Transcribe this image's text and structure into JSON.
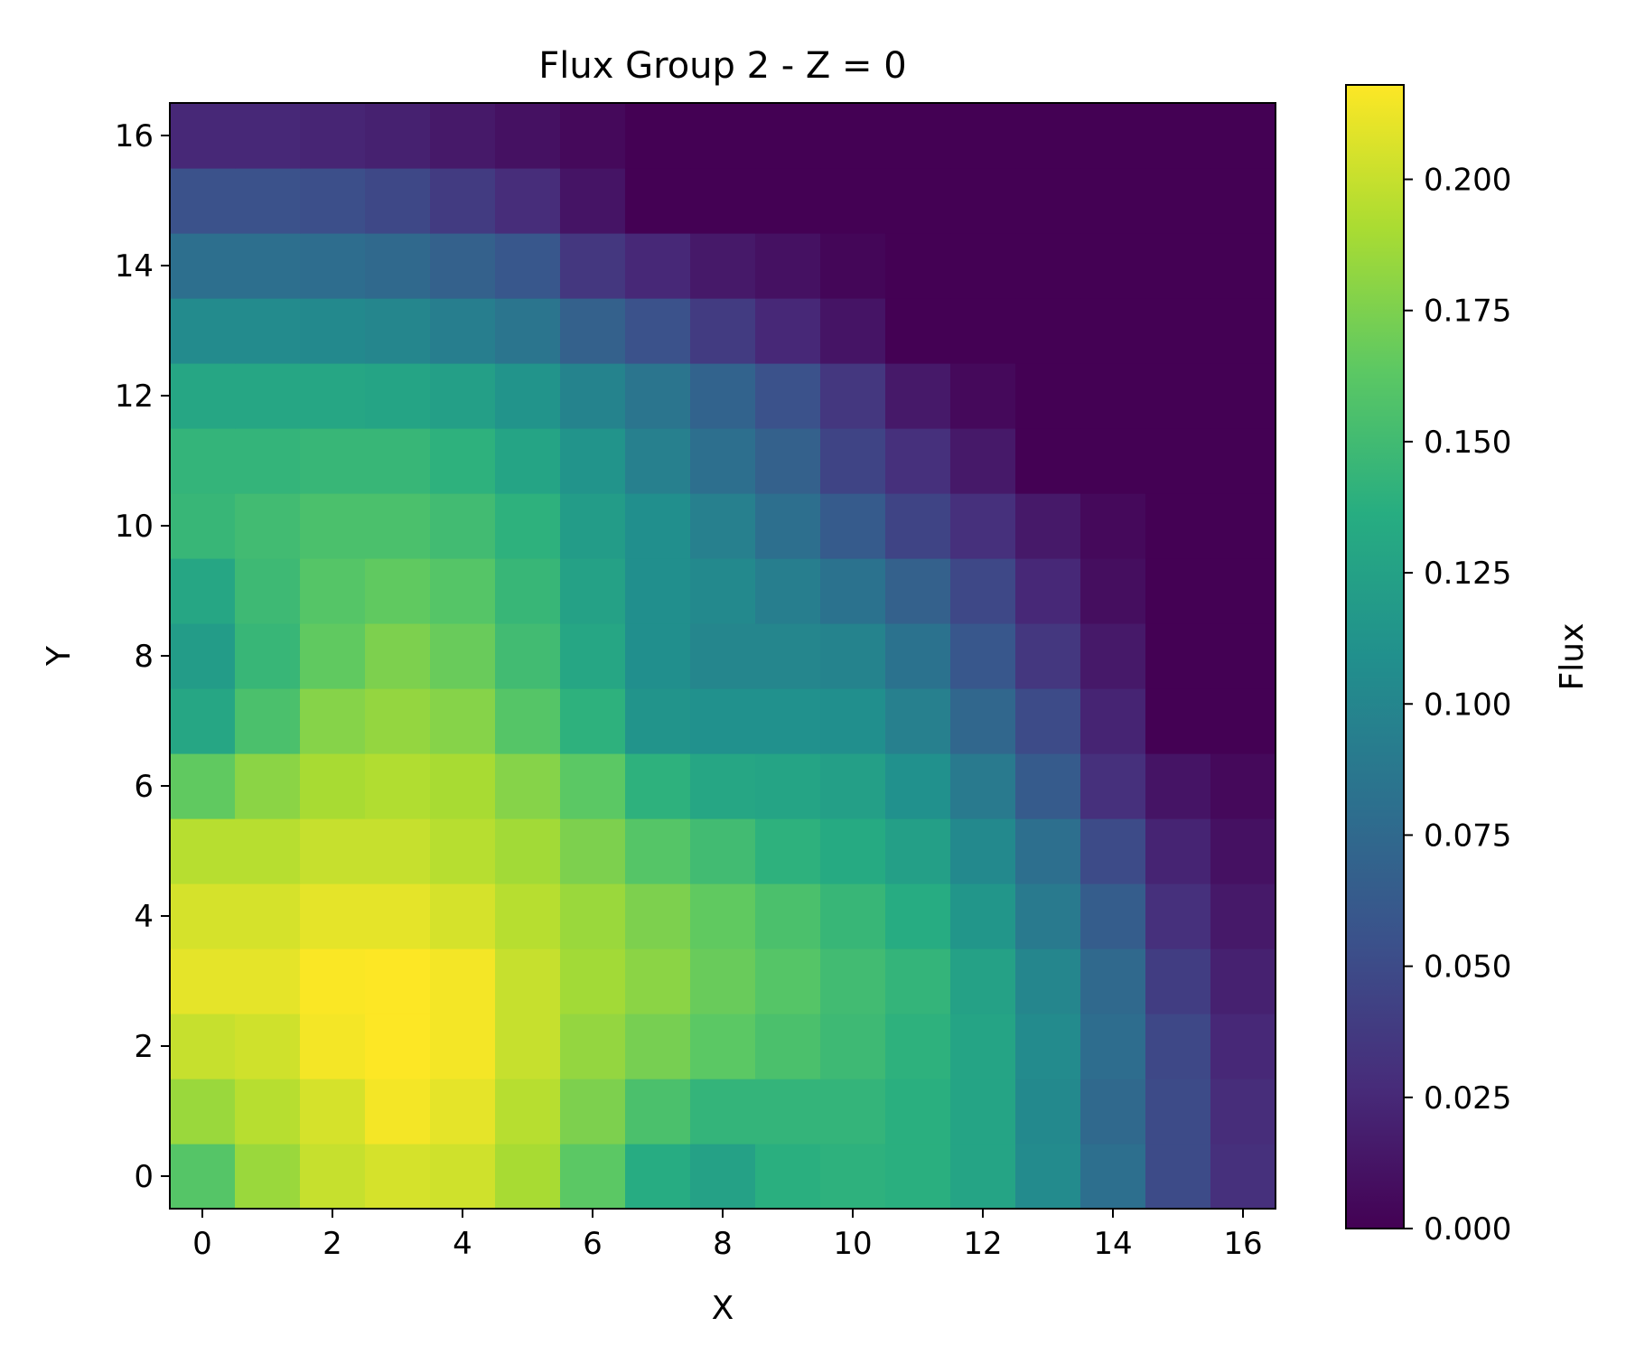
{
  "chart_data": {
    "type": "heatmap",
    "title": "Flux Group 2 - Z = 0",
    "xlabel": "X",
    "ylabel": "Y",
    "xlim": [
      -0.5,
      16.5
    ],
    "ylim": [
      -0.5,
      16.5
    ],
    "xticks": [
      0,
      2,
      4,
      6,
      8,
      10,
      12,
      14,
      16
    ],
    "yticks": [
      0,
      2,
      4,
      6,
      8,
      10,
      12,
      14,
      16
    ],
    "colormap": "viridis",
    "colorbar": {
      "label": "Flux",
      "min": 0.0,
      "max": 0.218,
      "ticks": [
        "0.000",
        "0.025",
        "0.050",
        "0.075",
        "0.100",
        "0.125",
        "0.150",
        "0.175",
        "0.200"
      ]
    },
    "grid_rows_y_ascending": [
      [
        0.16,
        0.185,
        0.2,
        0.205,
        0.203,
        0.19,
        0.163,
        0.135,
        0.125,
        0.138,
        0.14,
        0.138,
        0.128,
        0.105,
        0.08,
        0.05,
        0.03
      ],
      [
        0.185,
        0.195,
        0.205,
        0.215,
        0.21,
        0.195,
        0.175,
        0.155,
        0.143,
        0.143,
        0.143,
        0.138,
        0.128,
        0.103,
        0.075,
        0.05,
        0.028
      ],
      [
        0.2,
        0.203,
        0.215,
        0.218,
        0.215,
        0.2,
        0.183,
        0.173,
        0.163,
        0.155,
        0.148,
        0.14,
        0.128,
        0.105,
        0.078,
        0.048,
        0.025
      ],
      [
        0.21,
        0.21,
        0.217,
        0.218,
        0.215,
        0.2,
        0.188,
        0.18,
        0.168,
        0.16,
        0.15,
        0.143,
        0.125,
        0.1,
        0.075,
        0.04,
        0.02
      ],
      [
        0.205,
        0.205,
        0.21,
        0.21,
        0.205,
        0.195,
        0.185,
        0.175,
        0.165,
        0.155,
        0.145,
        0.135,
        0.115,
        0.09,
        0.065,
        0.03,
        0.015
      ],
      [
        0.195,
        0.195,
        0.2,
        0.2,
        0.195,
        0.188,
        0.175,
        0.16,
        0.15,
        0.14,
        0.133,
        0.123,
        0.103,
        0.08,
        0.05,
        0.022,
        0.01
      ],
      [
        0.165,
        0.18,
        0.19,
        0.193,
        0.19,
        0.178,
        0.163,
        0.14,
        0.13,
        0.128,
        0.123,
        0.11,
        0.09,
        0.063,
        0.03,
        0.012,
        0.005
      ],
      [
        0.13,
        0.155,
        0.178,
        0.183,
        0.178,
        0.16,
        0.14,
        0.113,
        0.11,
        0.11,
        0.108,
        0.095,
        0.073,
        0.05,
        0.022,
        0.0,
        0.0
      ],
      [
        0.12,
        0.145,
        0.165,
        0.175,
        0.168,
        0.15,
        0.13,
        0.108,
        0.1,
        0.1,
        0.098,
        0.083,
        0.06,
        0.035,
        0.015,
        0.0,
        0.0
      ],
      [
        0.13,
        0.148,
        0.16,
        0.165,
        0.16,
        0.145,
        0.125,
        0.108,
        0.103,
        0.093,
        0.083,
        0.068,
        0.048,
        0.025,
        0.008,
        0.0,
        0.0
      ],
      [
        0.145,
        0.15,
        0.155,
        0.155,
        0.15,
        0.14,
        0.12,
        0.108,
        0.095,
        0.08,
        0.063,
        0.045,
        0.03,
        0.015,
        0.005,
        0.0,
        0.0
      ],
      [
        0.143,
        0.143,
        0.145,
        0.145,
        0.14,
        0.128,
        0.113,
        0.095,
        0.08,
        0.068,
        0.045,
        0.03,
        0.015,
        0.0,
        0.0,
        0.0,
        0.0
      ],
      [
        0.13,
        0.13,
        0.13,
        0.128,
        0.123,
        0.113,
        0.098,
        0.085,
        0.07,
        0.055,
        0.035,
        0.015,
        0.005,
        0.0,
        0.0,
        0.0,
        0.0
      ],
      [
        0.105,
        0.105,
        0.103,
        0.1,
        0.093,
        0.085,
        0.068,
        0.055,
        0.038,
        0.025,
        0.012,
        0.0,
        0.0,
        0.0,
        0.0,
        0.0,
        0.0
      ],
      [
        0.08,
        0.08,
        0.078,
        0.075,
        0.068,
        0.06,
        0.035,
        0.025,
        0.015,
        0.01,
        0.003,
        0.0,
        0.0,
        0.0,
        0.0,
        0.0,
        0.0
      ],
      [
        0.055,
        0.055,
        0.053,
        0.048,
        0.038,
        0.028,
        0.012,
        0.0,
        0.0,
        0.0,
        0.0,
        0.0,
        0.0,
        0.0,
        0.0,
        0.0,
        0.0
      ],
      [
        0.025,
        0.025,
        0.023,
        0.02,
        0.015,
        0.01,
        0.005,
        0.0,
        0.0,
        0.0,
        0.0,
        0.0,
        0.0,
        0.0,
        0.0,
        0.0,
        0.0
      ]
    ]
  }
}
